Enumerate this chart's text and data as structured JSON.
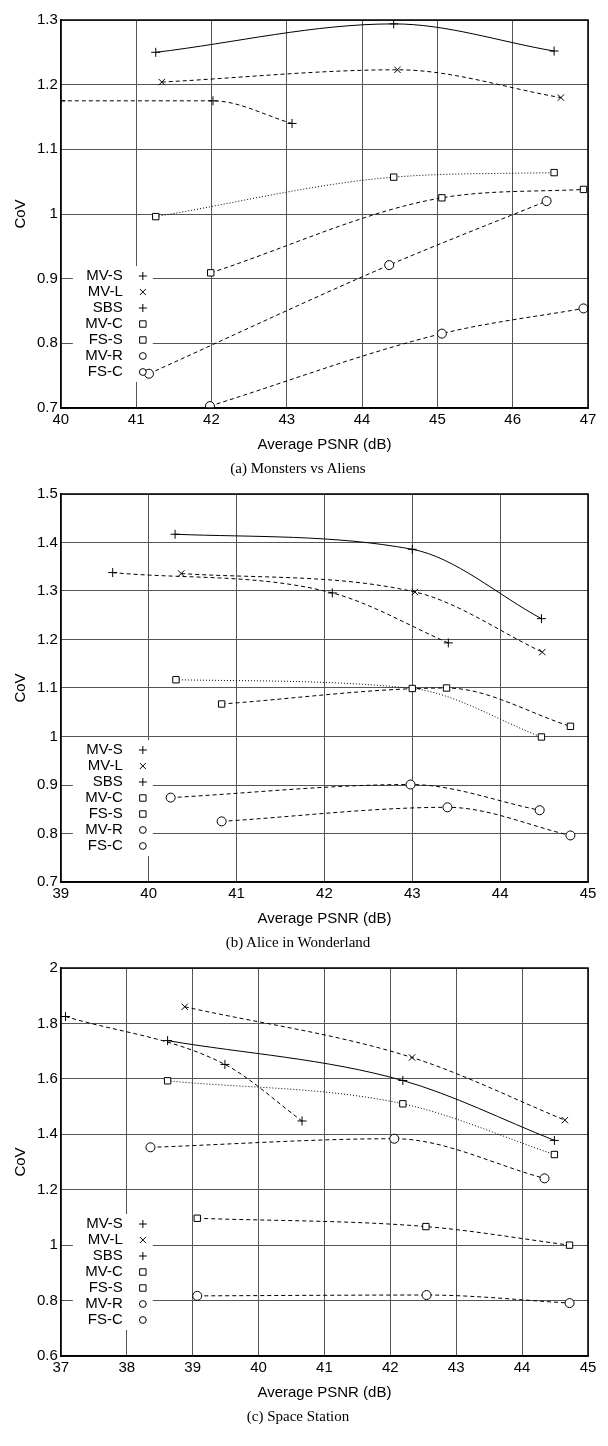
{
  "chart_data": [
    {
      "type": "line",
      "title": "(a) Monsters vs Aliens",
      "xlabel": "Average PSNR (dB)",
      "ylabel": "CoV",
      "xlim": [
        40,
        47
      ],
      "xticks": [
        40,
        41,
        42,
        43,
        44,
        45,
        46,
        47
      ],
      "ylim": [
        0.7,
        1.3
      ],
      "yticks": [
        0.7,
        0.8,
        0.9,
        1,
        1.1,
        1.2,
        1.3
      ],
      "grid": true,
      "legend": "bottom left",
      "series": [
        {
          "name": "MV-S",
          "color": "#000000",
          "marker": "cross",
          "line_style": "solid",
          "x": [
            41.26,
            44.42,
            46.55
          ],
          "values": [
            1.25,
            1.294,
            1.252
          ]
        },
        {
          "name": "MV-L",
          "color": "#000000",
          "marker": "x",
          "line_style": "dashed",
          "x": [
            41.34,
            44.47,
            46.64
          ],
          "values": [
            1.204,
            1.223,
            1.18
          ]
        },
        {
          "name": "SBS",
          "color": "#000000",
          "marker": "cross",
          "line_style": "dashed",
          "x": [
            40.0,
            42.02,
            43.07
          ],
          "values": [
            1.175,
            1.175,
            1.14
          ]
        },
        {
          "name": "MV-C",
          "color": "#000000",
          "marker": "square",
          "line_style": "dotted",
          "x": [
            41.26,
            44.42,
            46.55
          ],
          "values": [
            0.996,
            1.057,
            1.064
          ]
        },
        {
          "name": "FS-S",
          "color": "#000000",
          "marker": "square",
          "line_style": "dashed",
          "x": [
            41.99,
            45.06,
            46.94
          ],
          "values": [
            0.909,
            1.025,
            1.038
          ]
        },
        {
          "name": "MV-R",
          "color": "#000000",
          "marker": "circle",
          "line_style": "dashed",
          "x": [
            41.17,
            44.36,
            46.45
          ],
          "values": [
            0.753,
            0.921,
            1.02
          ]
        },
        {
          "name": "FS-C",
          "color": "#000000",
          "marker": "circle",
          "line_style": "dashed",
          "x": [
            41.98,
            45.06,
            46.94
          ],
          "values": [
            0.703,
            0.815,
            0.854
          ]
        }
      ]
    },
    {
      "type": "line",
      "title": "(b) Alice in Wonderland",
      "xlabel": "Average PSNR (dB)",
      "ylabel": "CoV",
      "xlim": [
        39,
        45
      ],
      "xticks": [
        39,
        40,
        41,
        42,
        43,
        44,
        45
      ],
      "ylim": [
        0.7,
        1.5
      ],
      "yticks": [
        0.7,
        0.8,
        0.9,
        1,
        1.1,
        1.2,
        1.3,
        1.4,
        1.5
      ],
      "grid": true,
      "legend": "bottom left",
      "series": [
        {
          "name": "MV-S",
          "color": "#000000",
          "marker": "cross",
          "line_style": "solid",
          "x": [
            40.3,
            43.0,
            44.47
          ],
          "values": [
            1.417,
            1.386,
            1.243
          ]
        },
        {
          "name": "MV-L",
          "color": "#000000",
          "marker": "x",
          "line_style": "dashed",
          "x": [
            40.37,
            43.03,
            44.48
          ],
          "values": [
            1.336,
            1.298,
            1.174
          ]
        },
        {
          "name": "SBS",
          "color": "#000000",
          "marker": "cross",
          "line_style": "dashed",
          "x": [
            39.59,
            42.09,
            43.41
          ],
          "values": [
            1.338,
            1.296,
            1.193
          ]
        },
        {
          "name": "MV-C",
          "color": "#000000",
          "marker": "square",
          "line_style": "dotted",
          "x": [
            40.31,
            43.0,
            44.47
          ],
          "values": [
            1.117,
            1.099,
            0.999
          ]
        },
        {
          "name": "FS-S",
          "color": "#000000",
          "marker": "square",
          "line_style": "dashed",
          "x": [
            40.83,
            43.39,
            44.8
          ],
          "values": [
            1.067,
            1.1,
            1.021
          ]
        },
        {
          "name": "MV-R",
          "color": "#000000",
          "marker": "circle",
          "line_style": "dashed",
          "x": [
            40.25,
            42.98,
            44.45
          ],
          "values": [
            0.874,
            0.901,
            0.848
          ]
        },
        {
          "name": "FS-C",
          "color": "#000000",
          "marker": "circle",
          "line_style": "dashed",
          "x": [
            40.83,
            43.4,
            44.8
          ],
          "values": [
            0.825,
            0.854,
            0.796
          ]
        }
      ]
    },
    {
      "type": "line",
      "title": "(c) Space Station",
      "xlabel": "Average PSNR (dB)",
      "ylabel": "CoV",
      "xlim": [
        37,
        45
      ],
      "xticks": [
        37,
        38,
        39,
        40,
        41,
        42,
        43,
        44,
        45
      ],
      "ylim": [
        0.6,
        2
      ],
      "yticks": [
        0.6,
        0.8,
        1,
        1.2,
        1.4,
        1.6,
        1.8,
        2
      ],
      "grid": true,
      "legend": "bottom left",
      "series": [
        {
          "name": "MV-S",
          "color": "#000000",
          "marker": "cross",
          "line_style": "solid",
          "x": [
            38.62,
            42.19,
            44.49
          ],
          "values": [
            1.738,
            1.594,
            1.378
          ]
        },
        {
          "name": "MV-L",
          "color": "#000000",
          "marker": "x",
          "line_style": "dashed",
          "x": [
            38.88,
            42.33,
            44.65
          ],
          "values": [
            1.86,
            1.677,
            1.451
          ]
        },
        {
          "name": "SBS",
          "color": "#000000",
          "marker": "cross",
          "line_style": "dashed",
          "x": [
            37.07,
            39.49,
            40.66
          ],
          "values": [
            1.825,
            1.652,
            1.448
          ]
        },
        {
          "name": "MV-C",
          "color": "#000000",
          "marker": "square",
          "line_style": "dotted",
          "x": [
            38.62,
            42.19,
            44.49
          ],
          "values": [
            1.593,
            1.51,
            1.327
          ]
        },
        {
          "name": "FS-S",
          "color": "#000000",
          "marker": "square",
          "line_style": "dashed",
          "x": [
            39.07,
            42.54,
            44.72
          ],
          "values": [
            1.097,
            1.067,
            1.0
          ]
        },
        {
          "name": "MV-R",
          "color": "#000000",
          "marker": "circle",
          "line_style": "dashed",
          "x": [
            38.36,
            42.06,
            44.34
          ],
          "values": [
            1.353,
            1.384,
            1.241
          ]
        },
        {
          "name": "FS-C",
          "color": "#000000",
          "marker": "circle",
          "line_style": "dashed",
          "x": [
            39.07,
            42.55,
            44.72
          ],
          "values": [
            0.817,
            0.82,
            0.791
          ]
        }
      ]
    }
  ]
}
